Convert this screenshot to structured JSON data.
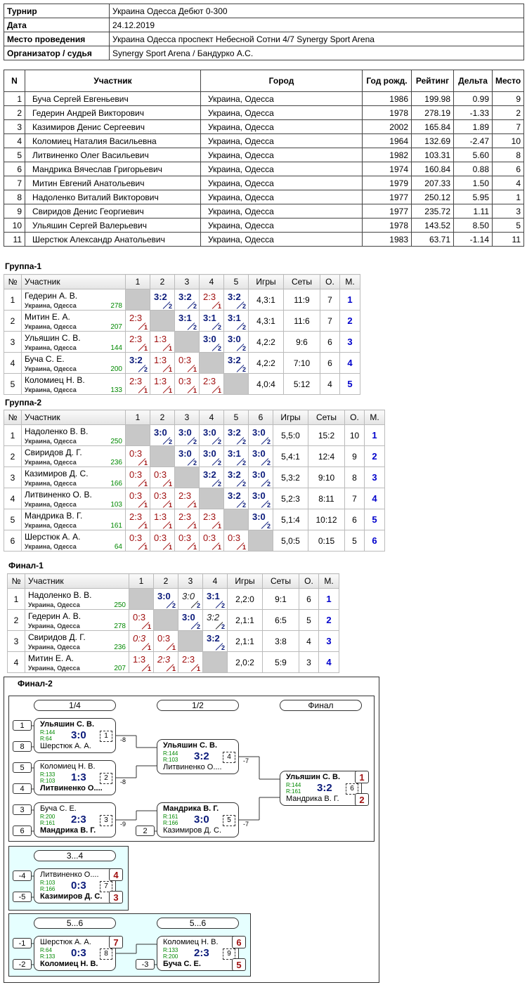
{
  "info": [
    {
      "label": "Турнир",
      "value": "Украина Одесса Дебют 0-300"
    },
    {
      "label": "Дата",
      "value": "24.12.2019"
    },
    {
      "label": "Место проведения",
      "value": "Украина Одесса проспект Небесной Сотни 4/7 Synergy Sport Arena"
    },
    {
      "label": "Организатор / судья",
      "value": "Synergy Sport Arena / Бандурко А.С."
    }
  ],
  "participants": {
    "headers": [
      "N",
      "Участник",
      "Город",
      "Год рожд.",
      "Рейтинг",
      "Дельта",
      "Место"
    ],
    "rows": [
      [
        "1",
        "Буча Сергей Евгеньевич",
        "Украина, Одесса",
        "1986",
        "199.98",
        "0.99",
        "9"
      ],
      [
        "2",
        "Гедерин Андрей Викторович",
        "Украина, Одесса",
        "1978",
        "278.19",
        "-1.33",
        "2"
      ],
      [
        "3",
        "Казимиров Денис Сергеевич",
        "Украина, Одесса",
        "2002",
        "165.84",
        "1.89",
        "7"
      ],
      [
        "4",
        "Коломиец Наталия Васильевна",
        "Украина, Одесса",
        "1964",
        "132.69",
        "-2.47",
        "10"
      ],
      [
        "5",
        "Литвиненко Олег Васильевич",
        "Украина, Одесса",
        "1982",
        "103.31",
        "5.60",
        "8"
      ],
      [
        "6",
        "Мандрика Вячеслав Григорьевич",
        "Украина, Одесса",
        "1974",
        "160.84",
        "0.88",
        "6"
      ],
      [
        "7",
        "Митин Евгений Анатольевич",
        "Украина, Одесса",
        "1979",
        "207.33",
        "1.50",
        "4"
      ],
      [
        "8",
        "Надоленко Виталий Викторович",
        "Украина, Одесса",
        "1977",
        "250.12",
        "5.95",
        "1"
      ],
      [
        "9",
        "Свиридов Денис Георгиевич",
        "Украина, Одесса",
        "1977",
        "235.72",
        "1.11",
        "3"
      ],
      [
        "10",
        "Ульяшин Сергей Валерьевич",
        "Украина, Одесса",
        "1978",
        "143.52",
        "8.50",
        "5"
      ],
      [
        "11",
        "Шерстюк Александр Анатольевич",
        "Украина, Одесса",
        "1983",
        "63.71",
        "-1.14",
        "11"
      ]
    ]
  },
  "groups": [
    {
      "title": "Группа-1",
      "headers": [
        "№",
        "Участник",
        "1",
        "2",
        "3",
        "4",
        "5",
        "Игры",
        "Сеты",
        "О.",
        "М."
      ],
      "rows": [
        {
          "n": "1",
          "name": "Гедерин А. В.",
          "city": "Украина, Одесса",
          "rating": "278",
          "results": [
            null,
            {
              "score": "3:2",
              "pts": "2"
            },
            {
              "score": "3:2",
              "pts": "2"
            },
            {
              "score": "2:3",
              "pts": "1"
            },
            {
              "score": "3:2",
              "pts": "2"
            }
          ],
          "games": "4,3:1",
          "sets": "11:9",
          "points": "7",
          "place": "1"
        },
        {
          "n": "2",
          "name": "Митин Е. А.",
          "city": "Украина, Одесса",
          "rating": "207",
          "results": [
            {
              "score": "2:3",
              "pts": "1"
            },
            null,
            {
              "score": "3:1",
              "pts": "2"
            },
            {
              "score": "3:1",
              "pts": "2"
            },
            {
              "score": "3:1",
              "pts": "2"
            }
          ],
          "games": "4,3:1",
          "sets": "11:6",
          "points": "7",
          "place": "2"
        },
        {
          "n": "3",
          "name": "Ульяшин С. В.",
          "city": "Украина, Одесса",
          "rating": "144",
          "results": [
            {
              "score": "2:3",
              "pts": "1"
            },
            {
              "score": "1:3",
              "pts": "1"
            },
            null,
            {
              "score": "3:0",
              "pts": "2"
            },
            {
              "score": "3:0",
              "pts": "2"
            }
          ],
          "games": "4,2:2",
          "sets": "9:6",
          "points": "6",
          "place": "3"
        },
        {
          "n": "4",
          "name": "Буча С. Е.",
          "city": "Украина, Одесса",
          "rating": "200",
          "results": [
            {
              "score": "3:2",
              "pts": "2"
            },
            {
              "score": "1:3",
              "pts": "1"
            },
            {
              "score": "0:3",
              "pts": "1"
            },
            null,
            {
              "score": "3:2",
              "pts": "2"
            }
          ],
          "games": "4,2:2",
          "sets": "7:10",
          "points": "6",
          "place": "4"
        },
        {
          "n": "5",
          "name": "Коломиец Н. В.",
          "city": "Украина, Одесса",
          "rating": "133",
          "results": [
            {
              "score": "2:3",
              "pts": "1"
            },
            {
              "score": "1:3",
              "pts": "1"
            },
            {
              "score": "0:3",
              "pts": "1"
            },
            {
              "score": "2:3",
              "pts": "1"
            },
            null
          ],
          "games": "4,0:4",
          "sets": "5:12",
          "points": "4",
          "place": "5"
        }
      ]
    },
    {
      "title": "Группа-2",
      "headers": [
        "№",
        "Участник",
        "1",
        "2",
        "3",
        "4",
        "5",
        "6",
        "Игры",
        "Сеты",
        "О.",
        "М."
      ],
      "rows": [
        {
          "n": "1",
          "name": "Надоленко В. В.",
          "city": "Украина, Одесса",
          "rating": "250",
          "results": [
            null,
            {
              "score": "3:0",
              "pts": "2"
            },
            {
              "score": "3:0",
              "pts": "2"
            },
            {
              "score": "3:0",
              "pts": "2"
            },
            {
              "score": "3:2",
              "pts": "2"
            },
            {
              "score": "3:0",
              "pts": "2"
            }
          ],
          "games": "5,5:0",
          "sets": "15:2",
          "points": "10",
          "place": "1"
        },
        {
          "n": "2",
          "name": "Свиридов Д. Г.",
          "city": "Украина, Одесса",
          "rating": "236",
          "results": [
            {
              "score": "0:3",
              "pts": "1"
            },
            null,
            {
              "score": "3:0",
              "pts": "2"
            },
            {
              "score": "3:0",
              "pts": "2"
            },
            {
              "score": "3:1",
              "pts": "2"
            },
            {
              "score": "3:0",
              "pts": "2"
            }
          ],
          "games": "5,4:1",
          "sets": "12:4",
          "points": "9",
          "place": "2"
        },
        {
          "n": "3",
          "name": "Казимиров Д. С.",
          "city": "Украина, Одесса",
          "rating": "166",
          "results": [
            {
              "score": "0:3",
              "pts": "1"
            },
            {
              "score": "0:3",
              "pts": "1"
            },
            null,
            {
              "score": "3:2",
              "pts": "2"
            },
            {
              "score": "3:2",
              "pts": "2"
            },
            {
              "score": "3:0",
              "pts": "2"
            }
          ],
          "games": "5,3:2",
          "sets": "9:10",
          "points": "8",
          "place": "3"
        },
        {
          "n": "4",
          "name": "Литвиненко О. В.",
          "city": "Украина, Одесса",
          "rating": "103",
          "results": [
            {
              "score": "0:3",
              "pts": "1"
            },
            {
              "score": "0:3",
              "pts": "1"
            },
            {
              "score": "2:3",
              "pts": "1"
            },
            null,
            {
              "score": "3:2",
              "pts": "2"
            },
            {
              "score": "3:0",
              "pts": "2"
            }
          ],
          "games": "5,2:3",
          "sets": "8:11",
          "points": "7",
          "place": "4"
        },
        {
          "n": "5",
          "name": "Мандрика В. Г.",
          "city": "Украина, Одесса",
          "rating": "161",
          "results": [
            {
              "score": "2:3",
              "pts": "1"
            },
            {
              "score": "1:3",
              "pts": "1"
            },
            {
              "score": "2:3",
              "pts": "1"
            },
            {
              "score": "2:3",
              "pts": "1"
            },
            null,
            {
              "score": "3:0",
              "pts": "2"
            }
          ],
          "games": "5,1:4",
          "sets": "10:12",
          "points": "6",
          "place": "5"
        },
        {
          "n": "6",
          "name": "Шерстюк А. А.",
          "city": "Украина, Одесса",
          "rating": "64",
          "results": [
            {
              "score": "0:3",
              "pts": "1"
            },
            {
              "score": "0:3",
              "pts": "1"
            },
            {
              "score": "0:3",
              "pts": "1"
            },
            {
              "score": "0:3",
              "pts": "1"
            },
            {
              "score": "0:3",
              "pts": "1"
            },
            null
          ],
          "games": "5,0:5",
          "sets": "0:15",
          "points": "5",
          "place": "6"
        }
      ]
    },
    {
      "title": "Финал-1",
      "headers": [
        "№",
        "Участник",
        "1",
        "2",
        "3",
        "4",
        "Игры",
        "Сеты",
        "О.",
        "М."
      ],
      "rows": [
        {
          "n": "1",
          "name": "Надоленко В. В.",
          "city": "Украина, Одесса",
          "rating": "250",
          "results": [
            null,
            {
              "score": "3:0",
              "pts": "2"
            },
            {
              "score": "3:0",
              "pts": "2",
              "italic": true
            },
            {
              "score": "3:1",
              "pts": "2"
            }
          ],
          "games": "2,2:0",
          "sets": "9:1",
          "points": "6",
          "place": "1"
        },
        {
          "n": "2",
          "name": "Гедерин А. В.",
          "city": "Украина, Одесса",
          "rating": "278",
          "results": [
            {
              "score": "0:3",
              "pts": "1"
            },
            null,
            {
              "score": "3:0",
              "pts": "2"
            },
            {
              "score": "3:2",
              "pts": "2",
              "italic": true
            }
          ],
          "games": "2,1:1",
          "sets": "6:5",
          "points": "5",
          "place": "2"
        },
        {
          "n": "3",
          "name": "Свиридов Д. Г.",
          "city": "Украина, Одесса",
          "rating": "236",
          "results": [
            {
              "score": "0:3",
              "pts": "1",
              "italic": true
            },
            {
              "score": "0:3",
              "pts": "1"
            },
            null,
            {
              "score": "3:2",
              "pts": "2"
            }
          ],
          "games": "2,1:1",
          "sets": "3:8",
          "points": "4",
          "place": "3"
        },
        {
          "n": "4",
          "name": "Митин Е. А.",
          "city": "Украина, Одесса",
          "rating": "207",
          "results": [
            {
              "score": "1:3",
              "pts": "1"
            },
            {
              "score": "2:3",
              "pts": "1",
              "italic": true
            },
            {
              "score": "2:3",
              "pts": "1"
            },
            null
          ],
          "games": "2,0:2",
          "sets": "5:9",
          "points": "3",
          "place": "4"
        }
      ]
    }
  ],
  "bracket": {
    "title": "Финал-2",
    "sections": [
      {
        "headers": [
          "1/4",
          "1/2",
          "Финал"
        ],
        "matches": [
          {
            "game": "1",
            "score": "3:0",
            "seeds": [
              "1",
              "8"
            ],
            "link": "-8",
            "players": [
              {
                "name": "Ульяшин С. В.",
                "rating": "R:144",
                "winner": true
              },
              {
                "name": "Шерстюк А. А.",
                "rating": "R:64"
              }
            ]
          },
          {
            "game": "2",
            "score": "1:3",
            "seeds": [
              "5",
              "4"
            ],
            "link": "-8",
            "players": [
              {
                "name": "Коломиец Н. В.",
                "rating": "R:133"
              },
              {
                "name": "Литвиненко О....",
                "rating": "R:103",
                "winner": true
              }
            ]
          },
          {
            "game": "3",
            "score": "2:3",
            "seeds": [
              "3",
              "6"
            ],
            "link": "-9",
            "players": [
              {
                "name": "Буча С. Е.",
                "rating": "R:200"
              },
              {
                "name": "Мандрика В. Г.",
                "rating": "R:161",
                "winner": true
              }
            ]
          },
          {
            "game": "4",
            "score": "3:2",
            "link": "-7",
            "players": [
              {
                "name": "Ульяшин С. В.",
                "rating": "R:144",
                "winner": true
              },
              {
                "name": "Литвиненко О....",
                "rating": "R:103"
              }
            ]
          },
          {
            "game": "5",
            "score": "3:0",
            "seeds": [
              null,
              "2"
            ],
            "link": "-7",
            "players": [
              {
                "name": "Мандрика В. Г.",
                "rating": "R:161",
                "winner": true
              },
              {
                "name": "Казимиров Д. С.",
                "rating": "R:166"
              }
            ]
          },
          {
            "game": "6",
            "score": "3:2",
            "places": [
              "1",
              "2"
            ],
            "players": [
              {
                "name": "Ульяшин С. В.",
                "rating": "R:144",
                "winner": true
              },
              {
                "name": "Мандрика В. Г.",
                "rating": "R:161"
              }
            ]
          }
        ]
      },
      {
        "headers": [
          "3...4"
        ],
        "matches": [
          {
            "game": "7",
            "score": "0:3",
            "seeds": [
              "-4",
              "-5"
            ],
            "places": [
              "4",
              "3"
            ],
            "players": [
              {
                "name": "Литвиненко О....",
                "rating": "R:103"
              },
              {
                "name": "Казимиров Д. С.",
                "rating": "R:166",
                "winner": true
              }
            ]
          }
        ]
      },
      {
        "headers": [
          "5...6",
          "5...6"
        ],
        "matches": [
          {
            "game": "8",
            "score": "0:3",
            "seeds": [
              "-1",
              "-2"
            ],
            "places": [
              "7",
              null
            ],
            "players": [
              {
                "name": "Шерстюк А. А.",
                "rating": "R:64"
              },
              {
                "name": "Коломиец Н. В.",
                "rating": "R:133",
                "winner": true
              }
            ]
          },
          {
            "game": "9",
            "score": "2:3",
            "seeds": [
              null,
              "-3"
            ],
            "places": [
              "6",
              "5"
            ],
            "players": [
              {
                "name": "Коломиец Н. В.",
                "rating": "R:133"
              },
              {
                "name": "Буча С. Е.",
                "rating": "R:200",
                "winner": true
              }
            ]
          }
        ]
      }
    ]
  }
}
